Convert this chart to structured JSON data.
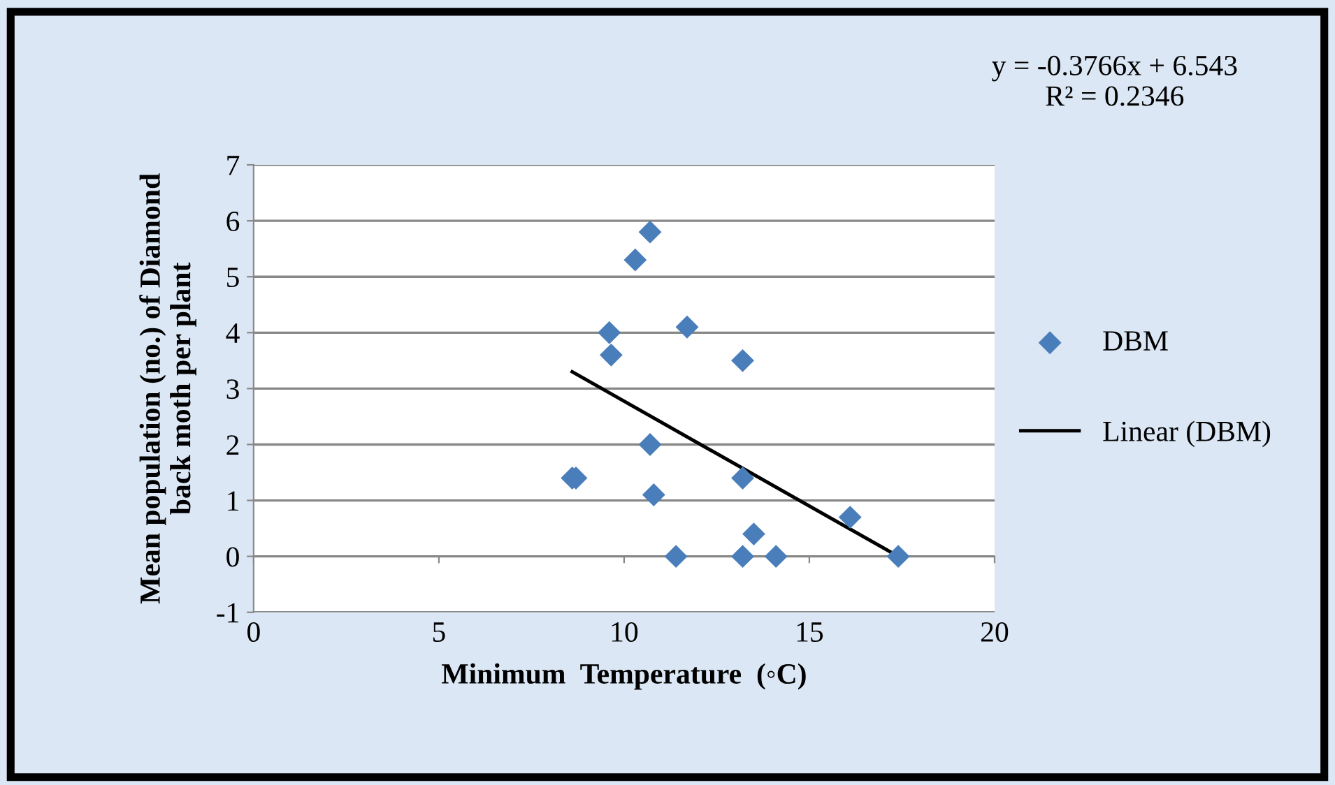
{
  "chart_data": {
    "type": "scatter",
    "xlabel": "Minimum  Temperature  (◦C)",
    "ylabel": "Mean population (no.) of Diamond\nback moth per plant",
    "xlim": [
      0,
      20
    ],
    "xticks": [
      0,
      5,
      10,
      15,
      20
    ],
    "ylim": [
      -1,
      7
    ],
    "yticks": [
      -1,
      0,
      1,
      2,
      3,
      4,
      5,
      6,
      7
    ],
    "grid": "y",
    "legend": "right",
    "annotations": [
      "y = -0.3766x + 6.543\nR² = 0.2346"
    ],
    "series": [
      {
        "name": "DBM",
        "marker": "diamond",
        "color": "#4a7ebb",
        "x": [
          10.7,
          10.3,
          9.6,
          9.65,
          11.7,
          13.2,
          10.7,
          8.6,
          8.7,
          10.8,
          13.2,
          13.5,
          16.1,
          11.4,
          13.2,
          14.1,
          17.4
        ],
        "values": [
          5.8,
          5.3,
          4.0,
          3.6,
          4.1,
          3.5,
          2.0,
          1.4,
          1.4,
          1.1,
          1.4,
          0.4,
          0.7,
          0,
          0,
          0,
          0
        ]
      },
      {
        "name": "Linear (DBM)",
        "type": "line",
        "marker": "none",
        "color": "#000000",
        "x": [
          8.6,
          17.4
        ],
        "values": [
          3.3,
          0.0
        ]
      }
    ]
  }
}
